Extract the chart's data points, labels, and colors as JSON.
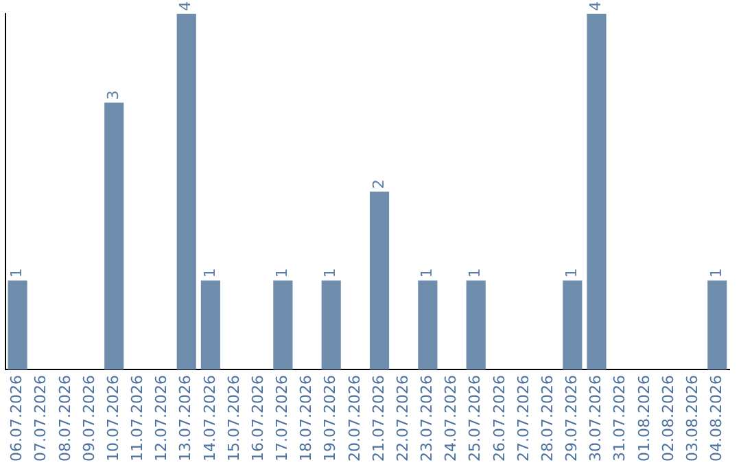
{
  "chart_data": {
    "type": "bar",
    "categories": [
      "06.07.2026",
      "07.07.2026",
      "08.07.2026",
      "09.07.2026",
      "10.07.2026",
      "11.07.2026",
      "12.07.2026",
      "13.07.2026",
      "14.07.2026",
      "15.07.2026",
      "16.07.2026",
      "17.07.2026",
      "18.07.2026",
      "19.07.2026",
      "20.07.2026",
      "21.07.2026",
      "22.07.2026",
      "23.07.2026",
      "24.07.2026",
      "25.07.2026",
      "26.07.2026",
      "27.07.2026",
      "28.07.2026",
      "29.07.2026",
      "30.07.2026",
      "31.07.2026",
      "01.08.2026",
      "02.08.2026",
      "03.08.2026",
      "04.08.2026"
    ],
    "values": [
      1,
      0,
      0,
      0,
      3,
      0,
      0,
      4,
      1,
      0,
      0,
      1,
      0,
      1,
      0,
      2,
      0,
      1,
      0,
      1,
      0,
      0,
      0,
      1,
      4,
      0,
      0,
      0,
      0,
      1
    ],
    "value_labels": [
      "1",
      null,
      null,
      null,
      "3",
      null,
      null,
      "4",
      "1",
      null,
      null,
      "1",
      null,
      "1",
      null,
      "2",
      null,
      "1",
      null,
      "1",
      null,
      null,
      null,
      "1",
      "4",
      null,
      null,
      null,
      null,
      "1"
    ],
    "color": "#6e8cab",
    "ylim": [
      0,
      4
    ],
    "tick_labels": "x",
    "grid": false,
    "legend": false
  }
}
